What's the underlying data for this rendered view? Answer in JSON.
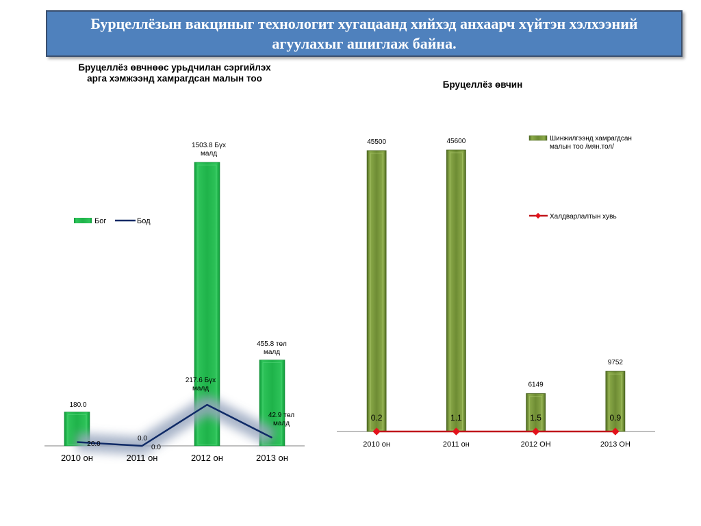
{
  "banner": {
    "title": "Бурцеллёзын вакциныг технологит хугацаанд хийхэд анхаарч хүйтэн хэлхээний агуулахыг ашиглаж байна."
  },
  "chart_data": [
    {
      "type": "bar",
      "title": "Бруцеллёз өвчнөөс урьдчилан сэргийлэх арга хэмжээнд хамрагдсан малын тоо",
      "categories": [
        "2010 он",
        "2011 он",
        "2012 он",
        "2013 он"
      ],
      "legend_position": "top-left",
      "grid": false,
      "series": [
        {
          "name": "Бог",
          "type": "bar",
          "color": "#1fb34a",
          "values": [
            180.0,
            0.0,
            1503.8,
            455.8
          ],
          "labels": [
            "180.0",
            "0.0",
            "1503.8 Бүх малд",
            "455.8 төл малд"
          ]
        },
        {
          "name": "Бод",
          "type": "line",
          "color": "#0f2a66",
          "values": [
            20.0,
            0.0,
            217.6,
            42.9
          ],
          "labels": [
            "20.0",
            "0.0",
            "217.6 Бүх малд",
            "42.9 төл малд"
          ]
        }
      ]
    },
    {
      "type": "bar",
      "title": "Бруцеллёз өвчин",
      "categories": [
        "2010 он",
        "2011 он",
        "2012 ОН",
        "2013 ОН"
      ],
      "legend_position": "right",
      "grid": false,
      "series": [
        {
          "name": "Шинжилгээнд хамрагдсан малын тоо /мян.тол/",
          "type": "bar",
          "color": "#77933c",
          "values": [
            45500,
            45600,
            6149,
            9752
          ],
          "labels": [
            "45500",
            "45600",
            "6149",
            "9752"
          ]
        },
        {
          "name": "Халдварлалтын хувь",
          "type": "line",
          "color": "#c0161b",
          "values": [
            0.2,
            1.1,
            1.5,
            0.9
          ],
          "labels": [
            "0.2",
            "1.1",
            "1.5",
            "0.9"
          ]
        }
      ]
    }
  ]
}
